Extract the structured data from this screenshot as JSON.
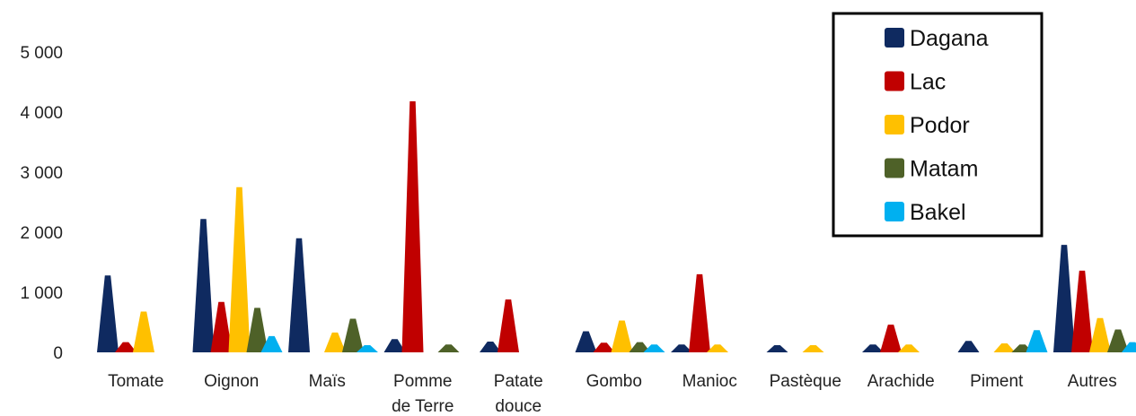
{
  "chart_data": {
    "type": "bar",
    "title": "",
    "xlabel": "",
    "ylabel": "",
    "ylim": [
      0,
      5000
    ],
    "y_ticks": [
      {
        "value": 0,
        "label": "0"
      },
      {
        "value": 1000,
        "label": "1 000"
      },
      {
        "value": 2000,
        "label": "2 000"
      },
      {
        "value": 3000,
        "label": "3 000"
      },
      {
        "value": 4000,
        "label": "4 000"
      },
      {
        "value": 5000,
        "label": "5 000"
      }
    ],
    "grid": false,
    "legend_position": "top-right",
    "categories": [
      [
        "Tomate"
      ],
      [
        "Oignon"
      ],
      [
        "Maïs"
      ],
      [
        "Pomme",
        "de Terre"
      ],
      [
        "Patate",
        "douce"
      ],
      [
        "Gombo"
      ],
      [
        "Manioc"
      ],
      [
        "Pastèque"
      ],
      [
        "Arachide"
      ],
      [
        "Piment"
      ],
      [
        "Autres"
      ]
    ],
    "series": [
      {
        "name": "Dagana",
        "color": "#0F2A60",
        "values": [
          1280,
          2220,
          1900,
          220,
          180,
          350,
          130,
          120,
          130,
          190,
          1790
        ]
      },
      {
        "name": "Lac",
        "color": "#C00000",
        "values": [
          170,
          840,
          0,
          4180,
          880,
          160,
          1300,
          0,
          460,
          0,
          1360
        ]
      },
      {
        "name": "Podor",
        "color": "#FFC000",
        "values": [
          680,
          2750,
          330,
          0,
          0,
          530,
          130,
          120,
          130,
          150,
          570
        ]
      },
      {
        "name": "Matam",
        "color": "#4E6128",
        "values": [
          0,
          740,
          560,
          130,
          0,
          170,
          0,
          0,
          0,
          130,
          380
        ]
      },
      {
        "name": "Bakel",
        "color": "#00B0F0",
        "values": [
          0,
          270,
          120,
          0,
          0,
          130,
          0,
          0,
          0,
          370,
          170
        ]
      }
    ]
  }
}
